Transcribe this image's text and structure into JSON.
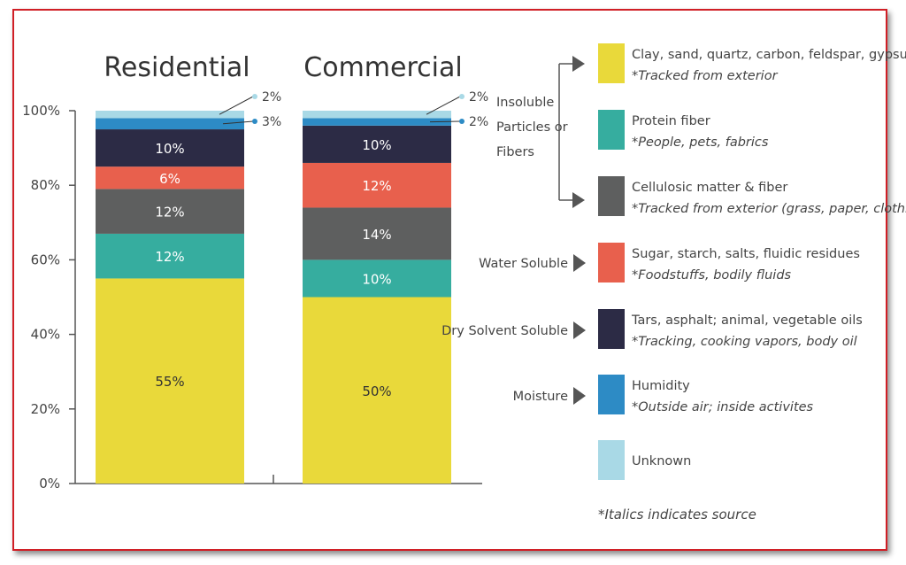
{
  "colors": {
    "clay": "#e9d93a",
    "protein": "#36ad9f",
    "cellulosic": "#5e5f5f",
    "water_soluble": "#e8604d",
    "dry_solvent": "#2c2b45",
    "moisture": "#2d8bc5",
    "unknown": "#a9d9e6",
    "frame": "#d01f26"
  },
  "chart_data": {
    "type": "bar",
    "stacked": true,
    "categories": [
      "Residential",
      "Commercial"
    ],
    "ylim": [
      0,
      100
    ],
    "yticks": [
      "0%",
      "20%",
      "40%",
      "60%",
      "80%",
      "100%"
    ],
    "series": [
      {
        "key": "clay",
        "values": [
          55,
          50
        ],
        "labels": [
          "55%",
          "50%"
        ]
      },
      {
        "key": "protein",
        "values": [
          12,
          10
        ],
        "labels": [
          "12%",
          "10%"
        ]
      },
      {
        "key": "cellulosic",
        "values": [
          12,
          14
        ],
        "labels": [
          "12%",
          "14%"
        ]
      },
      {
        "key": "water_soluble",
        "values": [
          6,
          12
        ],
        "labels": [
          "6%",
          "12%"
        ]
      },
      {
        "key": "dry_solvent",
        "values": [
          10,
          10
        ],
        "labels": [
          "10%",
          "10%"
        ]
      },
      {
        "key": "moisture",
        "values": [
          3,
          2
        ],
        "labels": [
          "3%",
          "2%"
        ]
      },
      {
        "key": "unknown",
        "values": [
          2,
          2
        ],
        "labels": [
          "2%",
          "2%"
        ]
      }
    ]
  },
  "legend": {
    "items": [
      {
        "key": "clay",
        "title": "Clay, sand, quartz, carbon, feldspar, gypsum",
        "source": "*Tracked from exterior"
      },
      {
        "key": "protein",
        "title": "Protein fiber",
        "source": "*People, pets, fabrics"
      },
      {
        "key": "cellulosic",
        "title": "Cellulosic matter & fiber",
        "source": "*Tracked from exterior (grass, paper, clothing, etc.)"
      },
      {
        "key": "water_soluble",
        "title": "Sugar, starch, salts, fluidic residues",
        "source": "*Foodstuffs, bodily fluids"
      },
      {
        "key": "dry_solvent",
        "title": "Tars, asphalt; animal, vegetable oils",
        "source": "*Tracking, cooking vapors, body oil"
      },
      {
        "key": "moisture",
        "title": "Humidity",
        "source": "*Outside air; inside activites"
      },
      {
        "key": "unknown",
        "title": "Unknown",
        "source": ""
      }
    ],
    "groups": {
      "insoluble": [
        "Insoluble",
        "Particles or",
        "Fibers"
      ],
      "water_soluble": "Water Soluble",
      "dry_solvent": "Dry Solvent Soluble",
      "moisture": "Moisture"
    },
    "footnote": "*Italics indicates source"
  }
}
